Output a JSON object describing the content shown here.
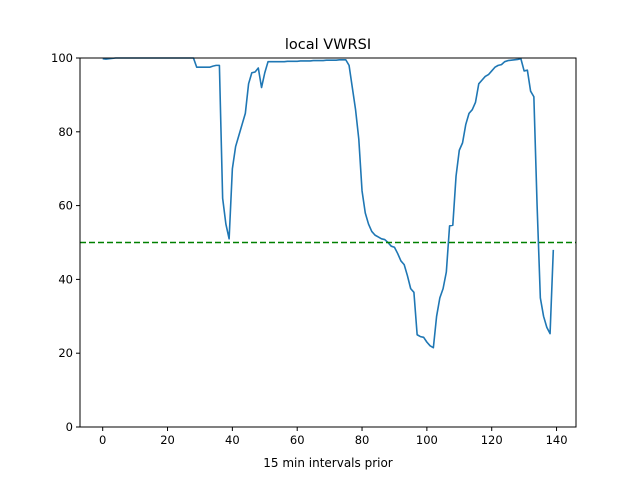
{
  "chart_data": {
    "type": "line",
    "title": "local VWRSI",
    "xlabel": "15 min intervals prior",
    "ylabel": "",
    "xlim": [
      -7,
      146
    ],
    "ylim": [
      0,
      100
    ],
    "xticks": [
      0,
      20,
      40,
      60,
      80,
      100,
      120,
      140
    ],
    "yticks": [
      0,
      20,
      40,
      60,
      80,
      100
    ],
    "grid": false,
    "series": [
      {
        "name": "local VWRSI",
        "color": "#1f77b4",
        "values": [
          99.8,
          99.7,
          99.8,
          99.9,
          100,
          100,
          100,
          100,
          100,
          100,
          100,
          100,
          100,
          100,
          100,
          100,
          100,
          100,
          100,
          100,
          100,
          100,
          100,
          100,
          100,
          100,
          100,
          100,
          100,
          97.5,
          97.5,
          97.5,
          97.5,
          97.5,
          97.8,
          98,
          98,
          62,
          55,
          51,
          70,
          76,
          79,
          82,
          85,
          93,
          96,
          96.2,
          97.3,
          92,
          96,
          99,
          99,
          99,
          99,
          99,
          99,
          99.1,
          99.1,
          99.1,
          99.1,
          99.2,
          99.2,
          99.2,
          99.2,
          99.3,
          99.3,
          99.3,
          99.3,
          99.4,
          99.4,
          99.4,
          99.4,
          99.5,
          99.5,
          99.5,
          98,
          92,
          86,
          78,
          64,
          58,
          55,
          53,
          52,
          51.5,
          51,
          50.8,
          50,
          49,
          48.7,
          47,
          45,
          44,
          41,
          37.5,
          36.5,
          25,
          24.5,
          24.3,
          23,
          22,
          21.5,
          30,
          35,
          37.5,
          42,
          54.5,
          54.7,
          68,
          75,
          77,
          82,
          85,
          86,
          88,
          93,
          94,
          95,
          95.5,
          96.5,
          97.5,
          98,
          98.2,
          99,
          99.3,
          99.4,
          99.5,
          99.6,
          99.8,
          96.5,
          96.7,
          91,
          89.5,
          60,
          35,
          30,
          27,
          25.3,
          48
        ]
      }
    ],
    "hlines": [
      {
        "y": 50,
        "color": "#008000",
        "style": "dashed"
      }
    ]
  }
}
